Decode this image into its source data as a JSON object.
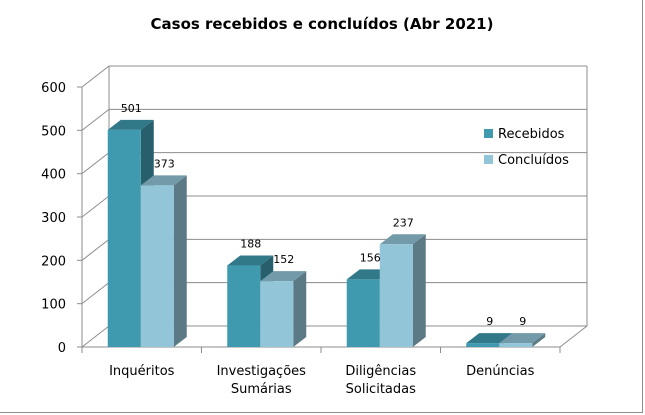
{
  "chart_data": {
    "type": "bar",
    "title": "Casos recebidos e concluídos (Abr 2021)",
    "categories": [
      [
        "Inquéritos"
      ],
      [
        "Investigações",
        "Sumárias"
      ],
      [
        "Diligências",
        "Solicitadas"
      ],
      [
        "Denúncias"
      ]
    ],
    "series": [
      {
        "name": "Recebidos",
        "values": [
          501,
          188,
          156,
          9
        ],
        "color": "#3F9AB0"
      },
      {
        "name": "Concluídos",
        "values": [
          373,
          152,
          237,
          9
        ],
        "color": "#92C5D8"
      }
    ],
    "y_ticks": [
      "0",
      "100",
      "200",
      "300",
      "400",
      "500",
      "600"
    ],
    "ylim": [
      0,
      600
    ],
    "grid": true,
    "legend_position": "right",
    "bar_style": "3d"
  }
}
